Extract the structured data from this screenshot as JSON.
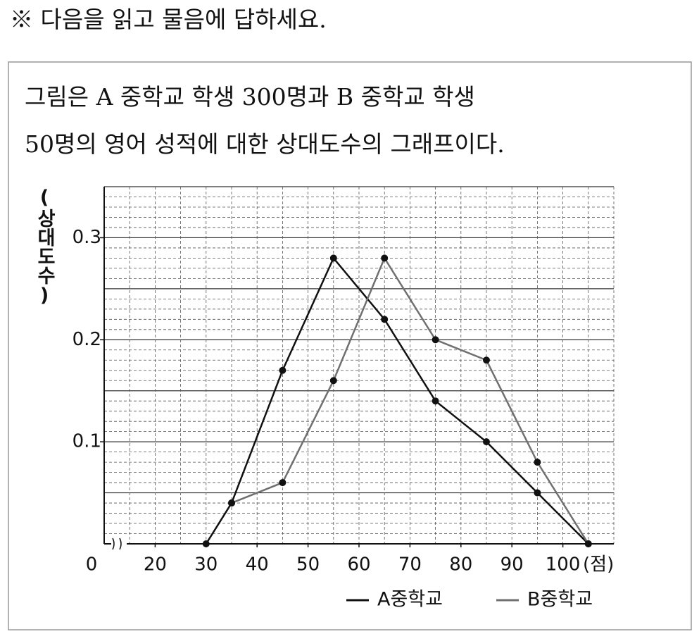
{
  "instruction": "※ 다음을 읽고 물음에 답하세요.",
  "passage": [
    "그림은 A 중학교 학생 300명과 B 중학교 학생",
    "50명의 영어 성적에 대한 상대도수의 그래프이다."
  ],
  "chart_data": {
    "type": "line",
    "y_label": "(상대도수)",
    "x_unit": "(점)",
    "origin_label": "0",
    "xlim": [
      10,
      110
    ],
    "xticks": [
      20,
      30,
      40,
      50,
      60,
      70,
      80,
      90,
      100
    ],
    "ylim": [
      0,
      0.35
    ],
    "yticks": [
      0.1,
      0.2,
      0.3
    ],
    "grid": true,
    "grid_major_step": 0.05,
    "grid_minor_step": 0.01,
    "x_grid_step": 5,
    "legend": "bottom-right",
    "series": [
      {
        "name": "A중학교",
        "color": "#111111",
        "x": [
          30,
          35,
          45,
          55,
          65,
          75,
          85,
          95,
          105
        ],
        "values": [
          0,
          0.04,
          0.17,
          0.28,
          0.22,
          0.14,
          0.1,
          0.05,
          0
        ]
      },
      {
        "name": "B중학교",
        "color": "#707070",
        "x": [
          35,
          45,
          55,
          65,
          75,
          85,
          95,
          105
        ],
        "values": [
          0.04,
          0.06,
          0.16,
          0.28,
          0.2,
          0.18,
          0.08,
          0
        ]
      }
    ]
  }
}
